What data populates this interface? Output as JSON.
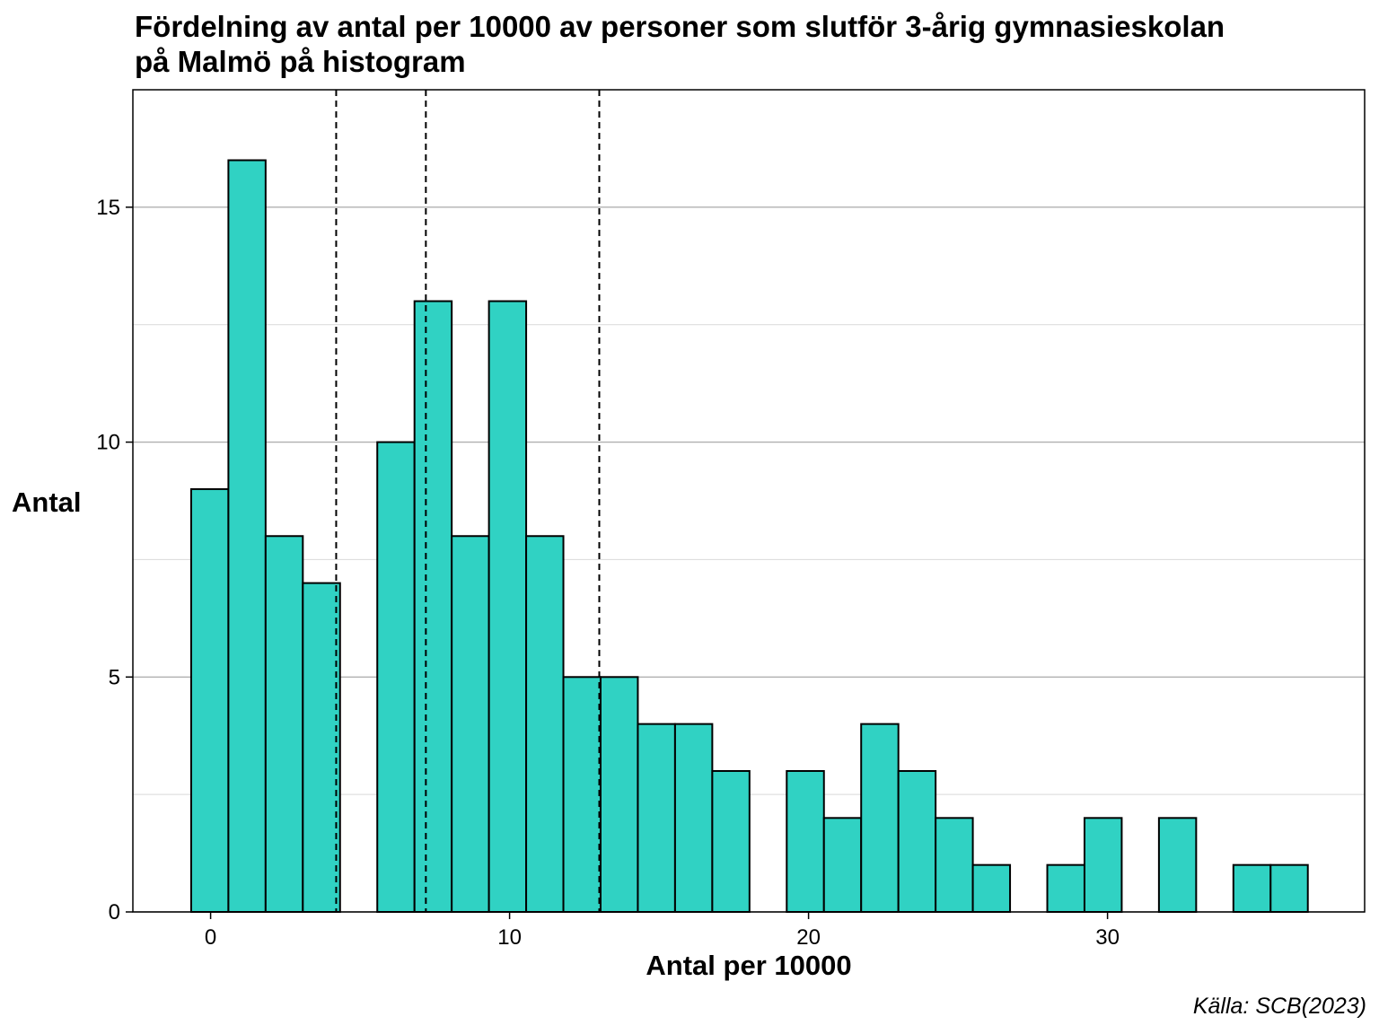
{
  "chart_data": {
    "type": "bar",
    "title": "Fördelning av antal per 10000 av personer som slutför 3-årig gymnasieskolan",
    "subtitle": "på Malmö på histogram",
    "xlabel": "Antal per 10000",
    "ylabel": "Antal",
    "caption": "Källa: SCB(2023)",
    "xlim": [
      -2.6,
      38.6
    ],
    "ylim": [
      0,
      17.5
    ],
    "x_ticks": [
      0,
      10,
      20,
      30
    ],
    "y_ticks": [
      0,
      5,
      10,
      15
    ],
    "x_tick_labels": [
      "0",
      "10",
      "20",
      "30"
    ],
    "y_tick_labels": [
      "0",
      "5",
      "10",
      "15"
    ],
    "bin_width": 1.245,
    "bin_start": -0.65,
    "counts": [
      9,
      16,
      8,
      7,
      0,
      10,
      13,
      8,
      13,
      8,
      5,
      5,
      4,
      4,
      3,
      0,
      3,
      2,
      4,
      3,
      2,
      1,
      0,
      1,
      2,
      0,
      2,
      0,
      1,
      1
    ],
    "reference_lines": [
      4.2,
      7.2,
      13.0
    ],
    "bar_color": "#30D2C3",
    "bar_edge_color": "#000000",
    "grid": true,
    "grid_major_color": "#B0B0B0",
    "grid_minor_color": "#D9D9D9"
  }
}
